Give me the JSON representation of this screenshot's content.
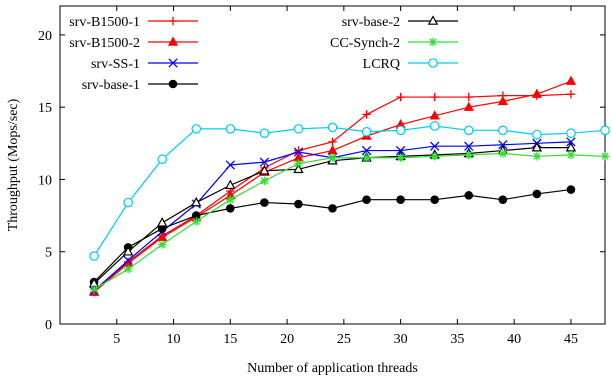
{
  "chart_data": {
    "type": "line",
    "title": "",
    "xlabel": "Number of application threads",
    "ylabel": "Throughput (Mops/sec)",
    "xlim": [
      0,
      48
    ],
    "ylim": [
      0,
      22
    ],
    "xticks": [
      5,
      10,
      15,
      20,
      25,
      30,
      35,
      40,
      45
    ],
    "yticks": [
      0,
      5,
      10,
      15,
      20
    ],
    "grid": false,
    "legend_placement": "top-left, two columns",
    "series": [
      {
        "name": "srv-B1500-1",
        "color": "#ff0000",
        "marker": "plus",
        "x": [
          3,
          6,
          9,
          12,
          15,
          18,
          21,
          24,
          27,
          30,
          33,
          36,
          39,
          42,
          45
        ],
        "y": [
          2.2,
          4.3,
          6.1,
          7.5,
          9.2,
          10.8,
          12.0,
          12.6,
          14.5,
          15.7,
          15.7,
          15.7,
          15.8,
          15.8,
          15.9
        ]
      },
      {
        "name": "srv-B1500-2",
        "color": "#ff0000",
        "marker": "triangle-filled",
        "x": [
          3,
          6,
          9,
          12,
          15,
          18,
          21,
          24,
          27,
          30,
          33,
          36,
          39,
          42,
          45
        ],
        "y": [
          2.2,
          4.2,
          6.0,
          7.4,
          8.9,
          10.5,
          11.5,
          12.0,
          13.0,
          13.8,
          14.4,
          15.0,
          15.4,
          15.9,
          16.8
        ]
      },
      {
        "name": "srv-SS-1",
        "color": "#0000ff",
        "marker": "x",
        "x": [
          3,
          6,
          9,
          12,
          15,
          18,
          21,
          24,
          27,
          30,
          33,
          36,
          39,
          42,
          45
        ],
        "y": [
          2.3,
          4.4,
          6.4,
          8.3,
          11.0,
          11.2,
          11.9,
          11.5,
          12.0,
          12.0,
          12.3,
          12.3,
          12.4,
          12.5,
          12.6
        ]
      },
      {
        "name": "srv-base-1",
        "color": "#000000",
        "marker": "circle-filled",
        "x": [
          3,
          6,
          9,
          12,
          15,
          18,
          21,
          24,
          27,
          30,
          33,
          36,
          39,
          42,
          45
        ],
        "y": [
          2.9,
          5.3,
          6.6,
          7.5,
          8.0,
          8.4,
          8.3,
          8.0,
          8.6,
          8.6,
          8.6,
          8.9,
          8.6,
          9.0,
          9.3
        ]
      },
      {
        "name": "srv-base-2",
        "color": "#000000",
        "marker": "triangle-open",
        "x": [
          3,
          6,
          9,
          12,
          15,
          18,
          21,
          24,
          27,
          30,
          33,
          36,
          39,
          42,
          45
        ],
        "y": [
          2.8,
          5.0,
          7.0,
          8.4,
          9.6,
          10.6,
          10.7,
          11.3,
          11.5,
          11.6,
          11.7,
          11.8,
          12.0,
          12.2,
          12.2
        ]
      },
      {
        "name": "CC-Synch-2",
        "color": "#33dd33",
        "marker": "star",
        "x": [
          3,
          6,
          9,
          12,
          15,
          18,
          21,
          24,
          27,
          30,
          33,
          36,
          39,
          42,
          45,
          48
        ],
        "y": [
          2.4,
          3.8,
          5.5,
          7.1,
          8.6,
          9.9,
          11.1,
          11.5,
          11.5,
          11.5,
          11.6,
          11.7,
          11.8,
          11.6,
          11.7,
          11.6
        ]
      },
      {
        "name": "LCRQ",
        "color": "#00ccee",
        "marker": "circle-open",
        "x": [
          3,
          6,
          9,
          12,
          15,
          18,
          21,
          24,
          27,
          30,
          33,
          36,
          39,
          42,
          45,
          48
        ],
        "y": [
          4.7,
          8.4,
          11.4,
          13.5,
          13.5,
          13.2,
          13.5,
          13.6,
          13.3,
          13.4,
          13.7,
          13.4,
          13.4,
          13.1,
          13.2,
          13.4
        ]
      }
    ]
  }
}
